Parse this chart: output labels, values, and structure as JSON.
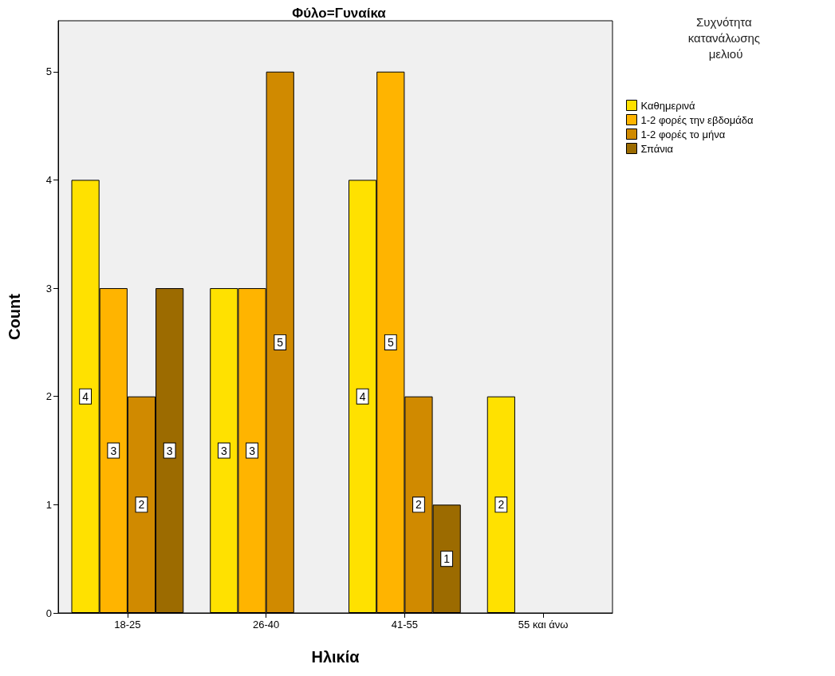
{
  "chart_data": {
    "type": "bar",
    "title": "Φύλο=Γυναίκα",
    "xlabel": "Ηλικία",
    "ylabel": "Count",
    "legend_title": "Συχνότητα κατανάλωσης μελιού",
    "categories": [
      "18-25",
      "26-40",
      "41-55",
      "55 και άνω"
    ],
    "series": [
      {
        "name": "Καθημερινά",
        "color": "#ffe100",
        "values": [
          4,
          3,
          4,
          2
        ]
      },
      {
        "name": "1-2 φορές την εβδομάδα",
        "color": "#ffb400",
        "values": [
          3,
          3,
          5,
          null
        ]
      },
      {
        "name": "1-2 φορές το μήνα",
        "color": "#d08a00",
        "values": [
          2,
          5,
          2,
          null
        ]
      },
      {
        "name": "Σπάνια",
        "color": "#9c6b00",
        "values": [
          3,
          null,
          1,
          null
        ]
      }
    ],
    "ylim": [
      0,
      5.47
    ],
    "yticks": [
      0,
      1,
      2,
      3,
      4,
      5
    ],
    "grid": false,
    "legend": "top right",
    "data_labels": true
  }
}
